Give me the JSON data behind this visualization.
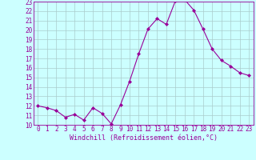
{
  "x": [
    0,
    1,
    2,
    3,
    4,
    5,
    6,
    7,
    8,
    9,
    10,
    11,
    12,
    13,
    14,
    15,
    16,
    17,
    18,
    19,
    20,
    21,
    22,
    23
  ],
  "y": [
    12,
    11.8,
    11.5,
    10.8,
    11.1,
    10.5,
    11.8,
    11.2,
    10.1,
    12.1,
    14.6,
    17.5,
    20.1,
    21.2,
    20.6,
    23.1,
    23.2,
    22.1,
    20.1,
    18.0,
    16.8,
    16.2,
    15.5,
    15.2
  ],
  "xlabel": "Windchill (Refroidissement éolien,°C)",
  "xlim": [
    -0.5,
    23.5
  ],
  "ylim": [
    10,
    23
  ],
  "yticks": [
    10,
    11,
    12,
    13,
    14,
    15,
    16,
    17,
    18,
    19,
    20,
    21,
    22,
    23
  ],
  "xticks": [
    0,
    1,
    2,
    3,
    4,
    5,
    6,
    7,
    8,
    9,
    10,
    11,
    12,
    13,
    14,
    15,
    16,
    17,
    18,
    19,
    20,
    21,
    22,
    23
  ],
  "line_color": "#990099",
  "marker": "D",
  "marker_size": 2,
  "bg_color": "#ccffff",
  "grid_color": "#aacccc",
  "font_color": "#990099",
  "font_family": "monospace",
  "tick_fontsize": 5.5,
  "xlabel_fontsize": 6.0,
  "linewidth": 0.8
}
